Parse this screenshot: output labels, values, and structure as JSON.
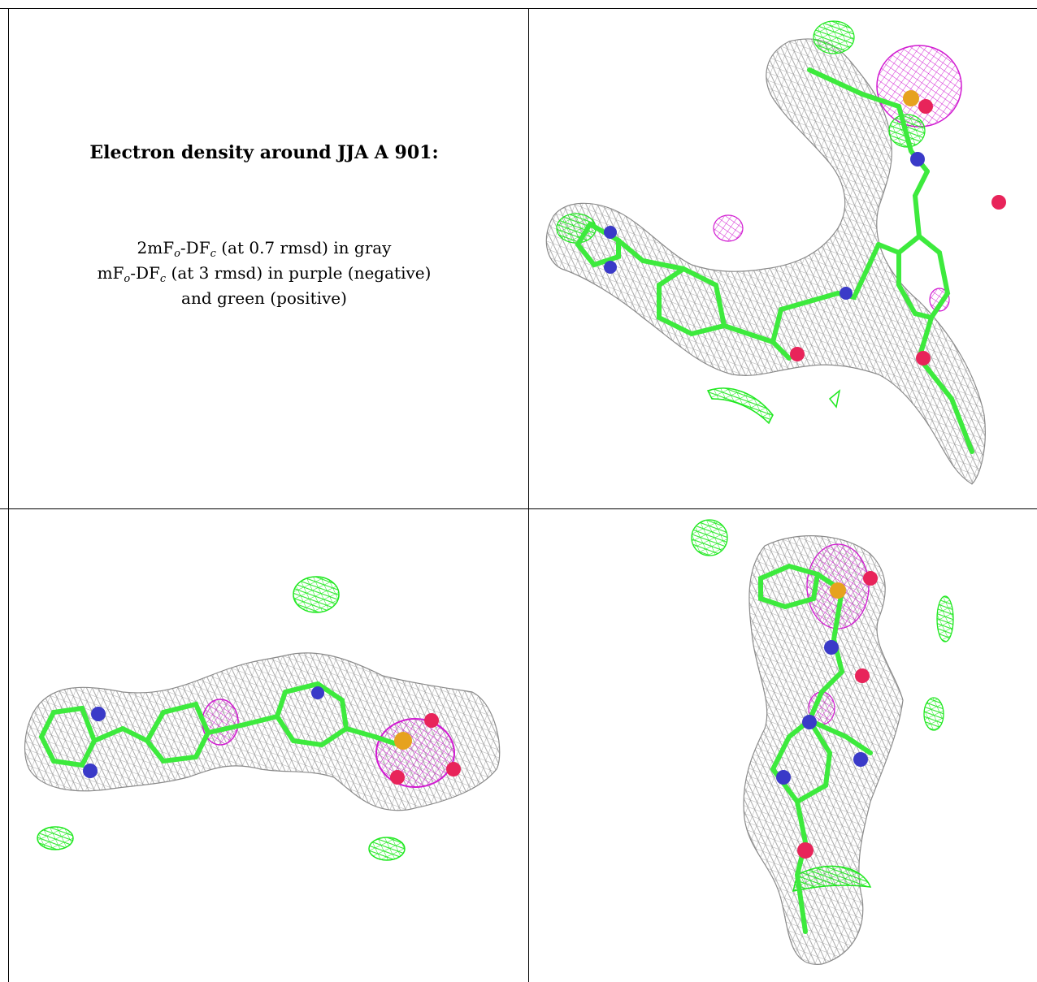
{
  "caption": {
    "title": "Electron density around JJA A 901:",
    "line1": {
      "prefix": "2mF",
      "sub_o": "o",
      "mid": "-DF",
      "sub_c": "c",
      "suffix": " (at 0.7 rmsd) in gray"
    },
    "line2": {
      "prefix": "mF",
      "sub_o": "o",
      "mid": "-DF",
      "sub_c": "c",
      "suffix": " (at 3 rmsd) in purple (negative)"
    },
    "line3": "and green (positive)"
  },
  "colors": {
    "mesh_2fofc": "#9a9a9a",
    "mesh_negative": "#d11ad1",
    "mesh_positive": "#1ee81e",
    "carbon": "#3dea3d",
    "nitrogen": "#3a3ac8",
    "oxygen": "#e8245a",
    "sulfur": "#e6a21e"
  },
  "panels": [
    {
      "name": "view-top-right",
      "icon": "electron-density-mesh-icon"
    },
    {
      "name": "view-bottom-left",
      "icon": "electron-density-mesh-icon"
    },
    {
      "name": "view-bottom-right",
      "icon": "electron-density-mesh-icon"
    }
  ]
}
